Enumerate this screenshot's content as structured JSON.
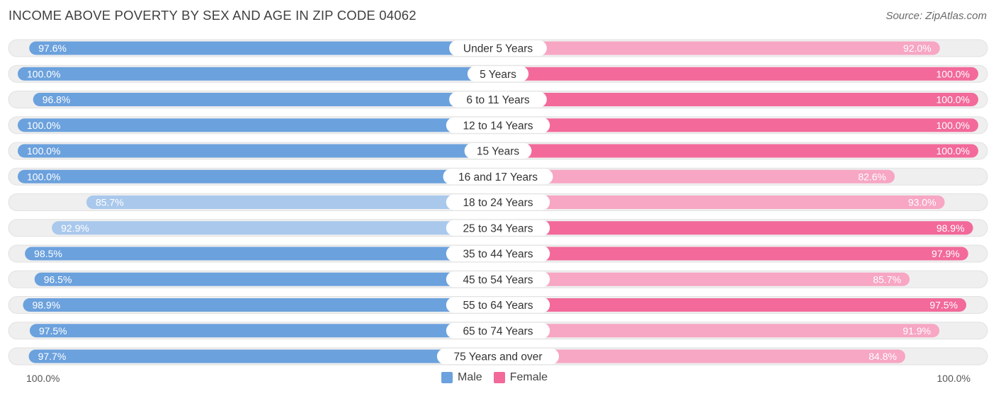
{
  "title": "INCOME ABOVE POVERTY BY SEX AND AGE IN ZIP CODE 04062",
  "source": "Source: ZipAtlas.com",
  "axis": {
    "left_label": "100.0%",
    "right_label": "100.0%"
  },
  "legend": {
    "male": "Male",
    "female": "Female"
  },
  "colors": {
    "male": "#6ba1dd",
    "male_light": "#a9c8ec",
    "female": "#f2699a",
    "female_light": "#f7a6c3",
    "track": "#efefef"
  },
  "chart_data": {
    "type": "bar",
    "orientation": "horizontal-diverging",
    "title": "INCOME ABOVE POVERTY BY SEX AND AGE IN ZIP CODE 04062",
    "categories": [
      "Under 5 Years",
      "5 Years",
      "6 to 11 Years",
      "12 to 14 Years",
      "15 Years",
      "16 and 17 Years",
      "18 to 24 Years",
      "25 to 34 Years",
      "35 to 44 Years",
      "45 to 54 Years",
      "55 to 64 Years",
      "65 to 74 Years",
      "75 Years and over"
    ],
    "series": [
      {
        "name": "Male",
        "values": [
          97.6,
          100.0,
          96.8,
          100.0,
          100.0,
          100.0,
          85.7,
          92.9,
          98.5,
          96.5,
          98.9,
          97.5,
          97.7
        ],
        "labels": [
          "97.6%",
          "100.0%",
          "96.8%",
          "100.0%",
          "100.0%",
          "100.0%",
          "85.7%",
          "92.9%",
          "98.5%",
          "96.5%",
          "98.9%",
          "97.5%",
          "97.7%"
        ]
      },
      {
        "name": "Female",
        "values": [
          92.0,
          100.0,
          100.0,
          100.0,
          100.0,
          82.6,
          93.0,
          98.9,
          97.9,
          85.7,
          97.5,
          91.9,
          84.8
        ],
        "labels": [
          "92.0%",
          "100.0%",
          "100.0%",
          "100.0%",
          "100.0%",
          "82.6%",
          "93.0%",
          "98.9%",
          "97.9%",
          "85.7%",
          "97.5%",
          "91.9%",
          "84.8%"
        ]
      }
    ],
    "xlim": [
      0,
      100
    ]
  }
}
